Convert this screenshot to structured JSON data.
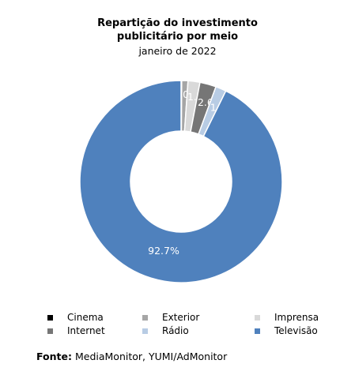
{
  "chart_data": {
    "type": "pie",
    "donut": true,
    "title": "Repartição do investimento publicitário por meio",
    "title_line1": "Repartição do investimento",
    "title_line2": "publicitário por meio",
    "subtitle": "janeiro de 2022",
    "slices": [
      {
        "label": "Cinema",
        "value": 0.1,
        "label_text": "0.1%",
        "color": "#000000"
      },
      {
        "label": "Exterior",
        "value": 1.0,
        "label_text": "1.0%",
        "color": "#a6a6a6"
      },
      {
        "label": "Imprensa",
        "value": 1.9,
        "label_text": "1.9%",
        "color": "#d9d9d9"
      },
      {
        "label": "Internet",
        "value": 2.6,
        "label_text": "2.6%",
        "color": "#767676"
      },
      {
        "label": "Rádio",
        "value": 1.7,
        "label_text": "1.7%",
        "color": "#b8cce4"
      },
      {
        "label": "Televisão",
        "value": 92.7,
        "label_text": "92.7%",
        "color": "#4f81bd"
      }
    ],
    "legend_position": "bottom"
  },
  "source": {
    "label": "Fonte:",
    "text": "MediaMonitor, YUMI/AdMonitor"
  }
}
